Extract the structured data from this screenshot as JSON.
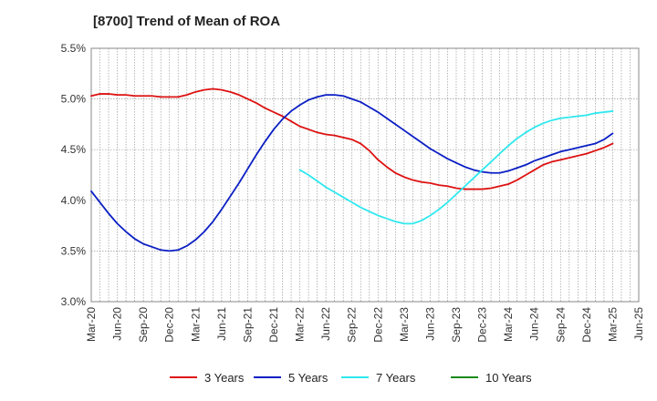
{
  "chart_data": {
    "type": "line",
    "title": "[8700]  Trend of Mean of ROA",
    "xlabel": "",
    "ylabel": "",
    "ylim": [
      3.0,
      5.5
    ],
    "yticks": [
      3.0,
      3.5,
      4.0,
      4.5,
      5.0,
      5.5
    ],
    "ytick_labels": [
      "3.0%",
      "3.5%",
      "4.0%",
      "4.5%",
      "5.0%",
      "5.5%"
    ],
    "x_tick_labels": [
      "Mar-20",
      "Jun-20",
      "Sep-20",
      "Dec-20",
      "Mar-21",
      "Jun-21",
      "Sep-21",
      "Dec-21",
      "Mar-22",
      "Jun-22",
      "Sep-22",
      "Dec-22",
      "Mar-23",
      "Jun-23",
      "Sep-23",
      "Dec-23",
      "Mar-24",
      "Jun-24",
      "Sep-24",
      "Dec-24",
      "Mar-25",
      "Jun-25"
    ],
    "grid": true,
    "legend_position": "bottom",
    "series": [
      {
        "name": "3 Years",
        "color": "#dd1111",
        "x": [
          "Mar-20",
          "Apr-20",
          "May-20",
          "Jun-20",
          "Jul-20",
          "Aug-20",
          "Sep-20",
          "Oct-20",
          "Nov-20",
          "Dec-20",
          "Jan-21",
          "Feb-21",
          "Mar-21",
          "Apr-21",
          "May-21",
          "Jun-21",
          "Jul-21",
          "Aug-21",
          "Sep-21",
          "Oct-21",
          "Nov-21",
          "Dec-21",
          "Jan-22",
          "Feb-22",
          "Mar-22",
          "Apr-22",
          "May-22",
          "Jun-22",
          "Jul-22",
          "Aug-22",
          "Sep-22",
          "Oct-22",
          "Nov-22",
          "Dec-22",
          "Jan-23",
          "Feb-23",
          "Mar-23",
          "Apr-23",
          "May-23",
          "Jun-23",
          "Jul-23",
          "Aug-23",
          "Sep-23",
          "Oct-23",
          "Nov-23",
          "Dec-23",
          "Jan-24",
          "Feb-24",
          "Mar-24",
          "Apr-24",
          "May-24",
          "Jun-24",
          "Jul-24",
          "Aug-24",
          "Sep-24",
          "Oct-24",
          "Nov-24",
          "Dec-24",
          "Jan-25",
          "Feb-25",
          "Mar-25"
        ],
        "values": [
          5.03,
          5.05,
          5.05,
          5.04,
          5.04,
          5.03,
          5.03,
          5.03,
          5.02,
          5.02,
          5.02,
          5.04,
          5.07,
          5.09,
          5.1,
          5.09,
          5.07,
          5.04,
          5.0,
          4.96,
          4.91,
          4.87,
          4.83,
          4.78,
          4.73,
          4.7,
          4.67,
          4.65,
          4.64,
          4.62,
          4.6,
          4.56,
          4.49,
          4.4,
          4.33,
          4.27,
          4.23,
          4.2,
          4.18,
          4.17,
          4.15,
          4.14,
          4.12,
          4.11,
          4.11,
          4.11,
          4.12,
          4.14,
          4.16,
          4.2,
          4.25,
          4.3,
          4.35,
          4.38,
          4.4,
          4.42,
          4.44,
          4.46,
          4.49,
          4.52,
          4.56
        ]
      },
      {
        "name": "5 Years",
        "color": "#0b1fc4",
        "x": [
          "Mar-20",
          "Apr-20",
          "May-20",
          "Jun-20",
          "Jul-20",
          "Aug-20",
          "Sep-20",
          "Oct-20",
          "Nov-20",
          "Dec-20",
          "Jan-21",
          "Feb-21",
          "Mar-21",
          "Apr-21",
          "May-21",
          "Jun-21",
          "Jul-21",
          "Aug-21",
          "Sep-21",
          "Oct-21",
          "Nov-21",
          "Dec-21",
          "Jan-22",
          "Feb-22",
          "Mar-22",
          "Apr-22",
          "May-22",
          "Jun-22",
          "Jul-22",
          "Aug-22",
          "Sep-22",
          "Oct-22",
          "Nov-22",
          "Dec-22",
          "Jan-23",
          "Feb-23",
          "Mar-23",
          "Apr-23",
          "May-23",
          "Jun-23",
          "Jul-23",
          "Aug-23",
          "Sep-23",
          "Oct-23",
          "Nov-23",
          "Dec-23",
          "Jan-24",
          "Feb-24",
          "Mar-24",
          "Apr-24",
          "May-24",
          "Jun-24",
          "Jul-24",
          "Aug-24",
          "Sep-24",
          "Oct-24",
          "Nov-24",
          "Dec-24",
          "Jan-25",
          "Feb-25",
          "Mar-25"
        ],
        "values": [
          4.09,
          3.98,
          3.87,
          3.77,
          3.69,
          3.62,
          3.57,
          3.54,
          3.51,
          3.5,
          3.51,
          3.55,
          3.61,
          3.69,
          3.79,
          3.91,
          4.04,
          4.17,
          4.31,
          4.45,
          4.58,
          4.7,
          4.8,
          4.88,
          4.94,
          4.99,
          5.02,
          5.04,
          5.04,
          5.03,
          5.0,
          4.97,
          4.92,
          4.87,
          4.81,
          4.75,
          4.69,
          4.63,
          4.57,
          4.51,
          4.46,
          4.41,
          4.37,
          4.33,
          4.3,
          4.28,
          4.27,
          4.27,
          4.29,
          4.32,
          4.35,
          4.39,
          4.42,
          4.45,
          4.48,
          4.5,
          4.52,
          4.54,
          4.56,
          4.6,
          4.66
        ]
      },
      {
        "name": "7 Years",
        "color": "#2ee8ee",
        "x": [
          "Mar-22",
          "Apr-22",
          "May-22",
          "Jun-22",
          "Jul-22",
          "Aug-22",
          "Sep-22",
          "Oct-22",
          "Nov-22",
          "Dec-22",
          "Jan-23",
          "Feb-23",
          "Mar-23",
          "Apr-23",
          "May-23",
          "Jun-23",
          "Jul-23",
          "Aug-23",
          "Sep-23",
          "Oct-23",
          "Nov-23",
          "Dec-23",
          "Jan-24",
          "Feb-24",
          "Mar-24",
          "Apr-24",
          "May-24",
          "Jun-24",
          "Jul-24",
          "Aug-24",
          "Sep-24",
          "Oct-24",
          "Nov-24",
          "Dec-24",
          "Jan-25",
          "Feb-25",
          "Mar-25"
        ],
        "values": [
          4.3,
          4.25,
          4.19,
          4.13,
          4.08,
          4.03,
          3.98,
          3.93,
          3.89,
          3.85,
          3.82,
          3.79,
          3.77,
          3.77,
          3.8,
          3.85,
          3.91,
          3.98,
          4.06,
          4.14,
          4.22,
          4.3,
          4.38,
          4.46,
          4.54,
          4.61,
          4.67,
          4.72,
          4.76,
          4.79,
          4.81,
          4.82,
          4.83,
          4.84,
          4.86,
          4.87,
          4.88
        ]
      },
      {
        "name": "10 Years",
        "color": "#1a8a1a",
        "x": [],
        "values": []
      }
    ]
  }
}
